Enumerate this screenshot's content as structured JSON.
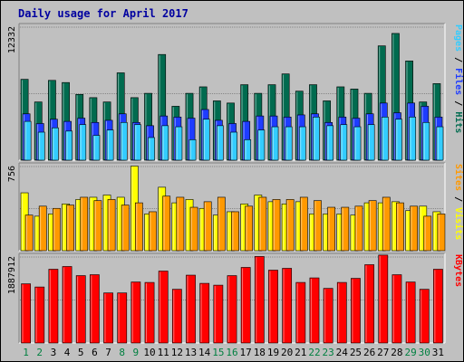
{
  "chart_data": {
    "type": "bar",
    "title": "Daily usage for April 2017",
    "colors": {
      "background": "#c0c0c0",
      "title": "#0000a0",
      "hits": "#006b4f",
      "files": "#1e3cff",
      "pages": "#33ccff",
      "visits": "#ffff00",
      "sites": "#ff9900",
      "kbytes": "#ff0000",
      "weekend_label": "#008040"
    },
    "categories": [
      "1",
      "2",
      "3",
      "4",
      "5",
      "6",
      "7",
      "8",
      "9",
      "10",
      "11",
      "12",
      "13",
      "14",
      "15",
      "16",
      "17",
      "18",
      "19",
      "20",
      "21",
      "22",
      "23",
      "24",
      "25",
      "26",
      "27",
      "28",
      "29",
      "30",
      "31"
    ],
    "weekend_days": [
      "1",
      "2",
      "8",
      "9",
      "15",
      "16",
      "22",
      "23",
      "29",
      "30"
    ],
    "panels": [
      {
        "ylabel_parts": [
          {
            "text": "Pages",
            "color": "#33ccff"
          },
          {
            "text": " / ",
            "color": "#000000"
          },
          {
            "text": "Files",
            "color": "#1e3cff"
          },
          {
            "text": " / ",
            "color": "#000000"
          },
          {
            "text": "Hits",
            "color": "#006b4f"
          }
        ],
        "max_label": "12332",
        "ymax": 12332,
        "series": [
          {
            "key": "hits",
            "values": [
              7500,
              5400,
              7400,
              7200,
              6100,
              5800,
              5400,
              8100,
              5800,
              6200,
              9800,
              5000,
              6200,
              6800,
              5500,
              5300,
              7000,
              6200,
              7000,
              8000,
              6400,
              7000,
              5500,
              6800,
              6600,
              6200,
              10600,
              11750,
              9200,
              5400,
              7100
            ]
          },
          {
            "key": "files",
            "values": [
              4300,
              3400,
              3800,
              3600,
              3900,
              3500,
              3700,
              4300,
              3500,
              3200,
              4100,
              4000,
              3900,
              4700,
              3700,
              3400,
              3600,
              4100,
              4100,
              4000,
              4200,
              4300,
              3500,
              4000,
              3900,
              4300,
              5300,
              4400,
              5300,
              5000,
              4000
            ]
          },
          {
            "key": "pages",
            "values": [
              3600,
              2600,
              3000,
              2700,
              3300,
              2300,
              2800,
              3500,
              3300,
              2100,
              3200,
              3100,
              1900,
              3800,
              3200,
              2600,
              1900,
              2800,
              3100,
              3100,
              3100,
              4000,
              3200,
              3300,
              3100,
              3300,
              4000,
              3800,
              4000,
              3500,
              3100
            ]
          }
        ]
      },
      {
        "ylabel_parts": [
          {
            "text": "Sites",
            "color": "#ff9900"
          },
          {
            "text": " / ",
            "color": "#000000"
          },
          {
            "text": "Visits",
            "color": "#ffff00"
          }
        ],
        "max_label": "756",
        "ymax": 756,
        "series": [
          {
            "key": "visits",
            "values": [
              520,
              310,
              330,
              420,
              460,
              480,
              500,
              480,
              760,
              330,
              570,
              430,
              460,
              380,
              320,
              350,
              420,
              500,
              440,
              420,
              440,
              330,
              330,
              330,
              320,
              430,
              430,
              440,
              360,
              400,
              350
            ]
          },
          {
            "key": "sites",
            "values": [
              320,
              400,
              380,
              410,
              480,
              450,
              460,
              410,
              430,
              350,
              490,
              480,
              390,
              440,
              480,
              350,
              400,
              480,
              460,
              460,
              480,
              450,
              390,
              390,
              400,
              450,
              480,
              430,
              400,
              310,
              330
            ]
          }
        ]
      },
      {
        "ylabel_parts": [
          {
            "text": "KBytes",
            "color": "#ff0000"
          }
        ],
        "max_label": "1887912",
        "ymax": 1887912,
        "series": [
          {
            "key": "kbytes",
            "values": [
              1300000,
              1230000,
              1620000,
              1680000,
              1480000,
              1500000,
              1100000,
              1100000,
              1340000,
              1330000,
              1580000,
              1180000,
              1490000,
              1310000,
              1270000,
              1480000,
              1660000,
              1900000,
              1600000,
              1640000,
              1330000,
              1430000,
              1200000,
              1330000,
              1420000,
              1720000,
              1930000,
              1500000,
              1340000,
              1180000,
              1620000
            ]
          }
        ]
      }
    ]
  }
}
